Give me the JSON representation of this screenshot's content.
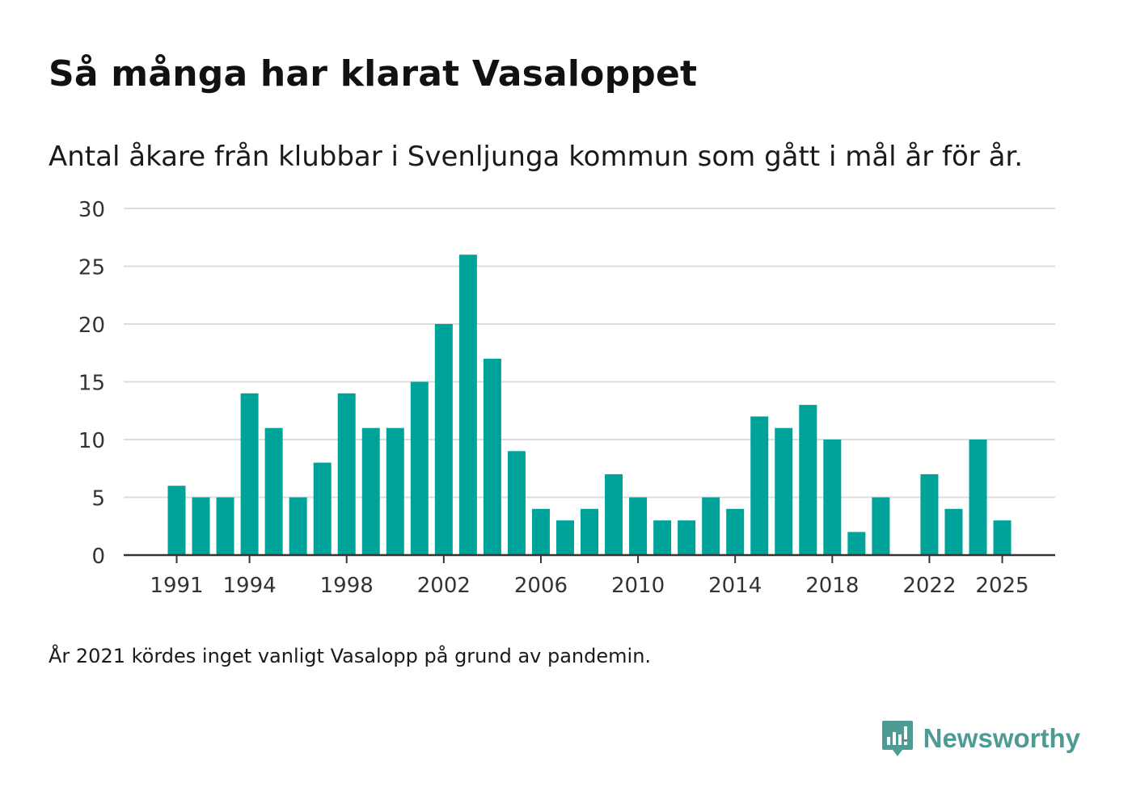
{
  "header": {
    "title": "Så många har klarat Vasaloppet",
    "subtitle": "Antal åkare från klubbar i Svenljunga kommun som gått i mål år för år."
  },
  "footer": {
    "note": "År 2021 kördes inget vanligt Vasalopp på grund av pandemin.",
    "brand_name": "Newsworthy",
    "brand_icon": "newsworthy-logo-icon"
  },
  "colors": {
    "bar": "#00a39a",
    "grid": "#dddddd",
    "axis": "#333333",
    "brand": "#4e9b95"
  },
  "chart_data": {
    "type": "bar",
    "title": "Så många har klarat Vasaloppet",
    "subtitle": "Antal åkare från klubbar i Svenljunga kommun som gått i mål år för år.",
    "xlabel": "",
    "ylabel": "",
    "ylim": [
      0,
      30
    ],
    "yticks": [
      0,
      5,
      10,
      15,
      20,
      25,
      30
    ],
    "xticks": [
      1991,
      1994,
      1998,
      2002,
      2006,
      2010,
      2014,
      2018,
      2022,
      2025
    ],
    "grid": true,
    "legend": "none",
    "categories": [
      1991,
      1992,
      1993,
      1994,
      1995,
      1996,
      1997,
      1998,
      1999,
      2000,
      2001,
      2002,
      2003,
      2004,
      2005,
      2006,
      2007,
      2008,
      2009,
      2010,
      2011,
      2012,
      2013,
      2014,
      2015,
      2016,
      2017,
      2018,
      2019,
      2020,
      2021,
      2022,
      2023,
      2024,
      2025
    ],
    "values": [
      6,
      5,
      5,
      14,
      11,
      5,
      8,
      14,
      11,
      11,
      15,
      20,
      26,
      17,
      9,
      4,
      3,
      4,
      7,
      5,
      3,
      3,
      5,
      4,
      12,
      11,
      13,
      10,
      2,
      5,
      0,
      7,
      4,
      10,
      3
    ]
  }
}
